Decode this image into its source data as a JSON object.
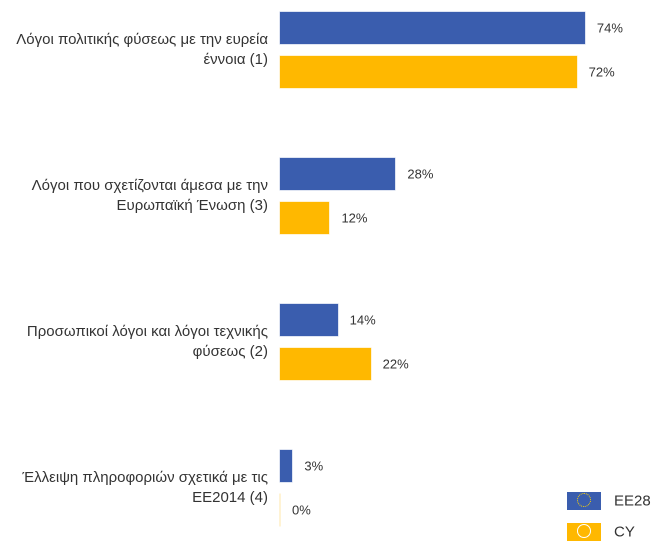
{
  "chart_data": {
    "type": "bar",
    "orientation": "horizontal",
    "categories": [
      "Λόγοι πολιτικής φύσεως με την ευρεία έννοια (1)",
      "Λόγοι που σχετίζονται άμεσα με την Ευρωπαϊκή Ένωση (3)",
      "Προσωπικοί λόγοι και λόγοι τεχνικής φύσεως (2)",
      "Έλλειψη πληροφοριών σχετικά με τις ΕΕ2014 (4)"
    ],
    "series": [
      {
        "name": "EE28",
        "color": "#3a5dae",
        "values": [
          74,
          28,
          14,
          3
        ],
        "value_labels": [
          "74%",
          "28%",
          "14%",
          "3%"
        ]
      },
      {
        "name": "CY",
        "color": "#ffb800",
        "values": [
          72,
          12,
          22,
          0
        ],
        "value_labels": [
          "72%",
          "12%",
          "22%",
          "0%"
        ]
      }
    ],
    "legend": "bottom-right"
  }
}
